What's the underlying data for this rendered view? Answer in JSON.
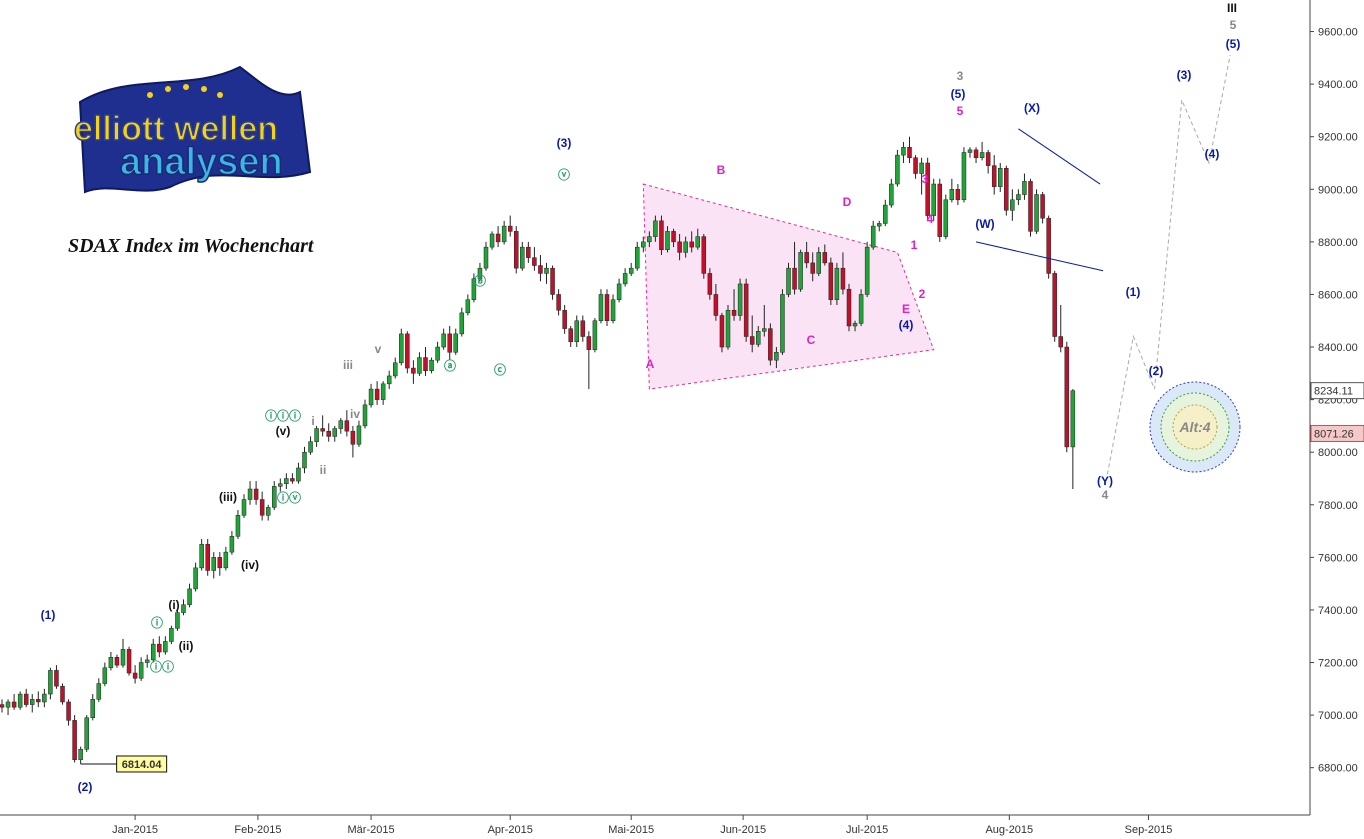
{
  "title": "SDAX Index im Wochenchart",
  "logo": {
    "line1": "elliott wellen",
    "line2": "analysen"
  },
  "colors": {
    "up": "#22a33a",
    "down": "#c0102a",
    "wave_blue": "#0a1aa8",
    "wave_magenta": "#e020c8",
    "wave_green": "#2aa06a",
    "wave_black": "#111111",
    "wave_grey": "#888888",
    "triangle_fill": "#f8d7ef",
    "triangle_line": "#e03090"
  },
  "alt_label": "Alt:4",
  "chart_data": {
    "type": "candlestick",
    "title": "SDAX Index im Wochenchart",
    "xlabel": "",
    "ylabel": "",
    "x_ticks": [
      "Jan-2015",
      "Feb-2015",
      "Mär-2015",
      "Apr-2015",
      "Mai-2015",
      "Jun-2015",
      "Jul-2015",
      "Aug-2015",
      "Sep-2015"
    ],
    "y_ticks": [
      "6800.00",
      "7000.00",
      "7200.00",
      "7400.00",
      "7600.00",
      "7800.00",
      "8000.00",
      "8200.00",
      "8400.00",
      "8600.00",
      "8800.00",
      "9000.00",
      "9200.00",
      "9400.00",
      "9600.00"
    ],
    "ylim": [
      6620,
      9720
    ],
    "price_labels": {
      "current": "8234.11",
      "secondary": "8071.26",
      "low_marker": "6814.04"
    },
    "candles": [
      [
        7040,
        7060,
        7010,
        7030
      ],
      [
        7030,
        7060,
        7000,
        7050
      ],
      [
        7050,
        7080,
        7020,
        7030
      ],
      [
        7030,
        7090,
        7020,
        7080
      ],
      [
        7080,
        7100,
        7030,
        7040
      ],
      [
        7040,
        7080,
        7010,
        7060
      ],
      [
        7060,
        7090,
        7030,
        7050
      ],
      [
        7050,
        7100,
        7030,
        7080
      ],
      [
        7080,
        7180,
        7060,
        7170
      ],
      [
        7170,
        7190,
        7100,
        7110
      ],
      [
        7110,
        7120,
        7040,
        7050
      ],
      [
        7050,
        7060,
        6960,
        6980
      ],
      [
        6980,
        7000,
        6820,
        6830
      ],
      [
        6830,
        6880,
        6814,
        6870
      ],
      [
        6870,
        7000,
        6860,
        6990
      ],
      [
        6990,
        7080,
        6980,
        7060
      ],
      [
        7060,
        7140,
        7050,
        7120
      ],
      [
        7120,
        7200,
        7110,
        7180
      ],
      [
        7180,
        7240,
        7170,
        7220
      ],
      [
        7220,
        7230,
        7180,
        7190
      ],
      [
        7190,
        7290,
        7180,
        7250
      ],
      [
        7250,
        7260,
        7150,
        7160
      ],
      [
        7160,
        7190,
        7120,
        7140
      ],
      [
        7140,
        7220,
        7130,
        7200
      ],
      [
        7200,
        7230,
        7180,
        7210
      ],
      [
        7210,
        7290,
        7200,
        7270
      ],
      [
        7270,
        7300,
        7220,
        7240
      ],
      [
        7240,
        7300,
        7230,
        7280
      ],
      [
        7280,
        7340,
        7270,
        7330
      ],
      [
        7330,
        7400,
        7320,
        7390
      ],
      [
        7390,
        7440,
        7380,
        7420
      ],
      [
        7420,
        7500,
        7410,
        7480
      ],
      [
        7480,
        7580,
        7470,
        7560
      ],
      [
        7560,
        7670,
        7550,
        7650
      ],
      [
        7650,
        7670,
        7530,
        7550
      ],
      [
        7550,
        7620,
        7520,
        7600
      ],
      [
        7600,
        7620,
        7530,
        7560
      ],
      [
        7560,
        7640,
        7550,
        7620
      ],
      [
        7620,
        7700,
        7610,
        7680
      ],
      [
        7680,
        7780,
        7670,
        7760
      ],
      [
        7760,
        7840,
        7750,
        7820
      ],
      [
        7820,
        7890,
        7800,
        7860
      ],
      [
        7860,
        7890,
        7800,
        7820
      ],
      [
        7820,
        7850,
        7740,
        7760
      ],
      [
        7760,
        7800,
        7740,
        7790
      ],
      [
        7790,
        7890,
        7780,
        7870
      ],
      [
        7870,
        7900,
        7850,
        7880
      ],
      [
        7880,
        7920,
        7860,
        7900
      ],
      [
        7900,
        7920,
        7880,
        7890
      ],
      [
        7890,
        7960,
        7880,
        7940
      ],
      [
        7940,
        8020,
        7920,
        8000
      ],
      [
        8000,
        8060,
        7990,
        8040
      ],
      [
        8040,
        8100,
        8020,
        8090
      ],
      [
        8090,
        8140,
        8060,
        8080
      ],
      [
        8080,
        8110,
        8040,
        8060
      ],
      [
        8060,
        8100,
        8040,
        8090
      ],
      [
        8090,
        8130,
        8070,
        8120
      ],
      [
        8120,
        8160,
        8060,
        8080
      ],
      [
        8080,
        8100,
        7980,
        8030
      ],
      [
        8030,
        8120,
        8020,
        8100
      ],
      [
        8100,
        8200,
        8090,
        8180
      ],
      [
        8180,
        8260,
        8170,
        8240
      ],
      [
        8240,
        8270,
        8180,
        8200
      ],
      [
        8200,
        8270,
        8180,
        8260
      ],
      [
        8260,
        8310,
        8240,
        8290
      ],
      [
        8290,
        8360,
        8280,
        8340
      ],
      [
        8340,
        8470,
        8330,
        8450
      ],
      [
        8450,
        8460,
        8300,
        8320
      ],
      [
        8320,
        8350,
        8260,
        8300
      ],
      [
        8300,
        8380,
        8290,
        8360
      ],
      [
        8360,
        8400,
        8290,
        8310
      ],
      [
        8310,
        8360,
        8300,
        8350
      ],
      [
        8350,
        8420,
        8340,
        8400
      ],
      [
        8400,
        8470,
        8390,
        8450
      ],
      [
        8450,
        8480,
        8350,
        8380
      ],
      [
        8380,
        8470,
        8370,
        8450
      ],
      [
        8450,
        8550,
        8440,
        8530
      ],
      [
        8530,
        8600,
        8520,
        8580
      ],
      [
        8580,
        8680,
        8570,
        8660
      ],
      [
        8660,
        8720,
        8650,
        8700
      ],
      [
        8700,
        8800,
        8690,
        8780
      ],
      [
        8780,
        8840,
        8770,
        8830
      ],
      [
        8830,
        8860,
        8780,
        8800
      ],
      [
        8800,
        8880,
        8790,
        8860
      ],
      [
        8860,
        8900,
        8820,
        8840
      ],
      [
        8840,
        8860,
        8680,
        8700
      ],
      [
        8700,
        8800,
        8690,
        8780
      ],
      [
        8780,
        8800,
        8720,
        8740
      ],
      [
        8740,
        8780,
        8690,
        8710
      ],
      [
        8710,
        8750,
        8650,
        8680
      ],
      [
        8680,
        8720,
        8640,
        8700
      ],
      [
        8700,
        8710,
        8580,
        8600
      ],
      [
        8600,
        8620,
        8520,
        8540
      ],
      [
        8540,
        8560,
        8450,
        8470
      ],
      [
        8470,
        8480,
        8400,
        8420
      ],
      [
        8420,
        8520,
        8400,
        8500
      ],
      [
        8500,
        8520,
        8420,
        8440
      ],
      [
        8440,
        8460,
        8240,
        8390
      ],
      [
        8390,
        8510,
        8380,
        8500
      ],
      [
        8500,
        8620,
        8490,
        8600
      ],
      [
        8600,
        8620,
        8480,
        8500
      ],
      [
        8500,
        8600,
        8490,
        8580
      ],
      [
        8580,
        8660,
        8570,
        8640
      ],
      [
        8640,
        8700,
        8630,
        8680
      ],
      [
        8680,
        8720,
        8670,
        8700
      ],
      [
        8700,
        8800,
        8690,
        8780
      ],
      [
        8780,
        8820,
        8760,
        8800
      ],
      [
        8800,
        8840,
        8780,
        8820
      ],
      [
        8820,
        8900,
        8800,
        8880
      ],
      [
        8880,
        8900,
        8750,
        8770
      ],
      [
        8770,
        8860,
        8760,
        8840
      ],
      [
        8840,
        8850,
        8780,
        8800
      ],
      [
        8800,
        8830,
        8730,
        8760
      ],
      [
        8760,
        8820,
        8740,
        8800
      ],
      [
        8800,
        8840,
        8760,
        8780
      ],
      [
        8780,
        8850,
        8770,
        8820
      ],
      [
        8820,
        8830,
        8660,
        8680
      ],
      [
        8680,
        8700,
        8580,
        8600
      ],
      [
        8600,
        8640,
        8500,
        8520
      ],
      [
        8520,
        8530,
        8380,
        8400
      ],
      [
        8400,
        8560,
        8390,
        8540
      ],
      [
        8540,
        8620,
        8500,
        8520
      ],
      [
        8520,
        8660,
        8500,
        8640
      ],
      [
        8640,
        8660,
        8420,
        8440
      ],
      [
        8440,
        8520,
        8380,
        8410
      ],
      [
        8410,
        8480,
        8400,
        8460
      ],
      [
        8460,
        8560,
        8440,
        8470
      ],
      [
        8470,
        8490,
        8330,
        8350
      ],
      [
        8350,
        8400,
        8320,
        8380
      ],
      [
        8380,
        8620,
        8370,
        8600
      ],
      [
        8600,
        8720,
        8590,
        8700
      ],
      [
        8700,
        8800,
        8600,
        8620
      ],
      [
        8620,
        8770,
        8610,
        8760
      ],
      [
        8760,
        8800,
        8700,
        8720
      ],
      [
        8720,
        8760,
        8650,
        8680
      ],
      [
        8680,
        8780,
        8670,
        8760
      ],
      [
        8760,
        8790,
        8710,
        8720
      ],
      [
        8720,
        8740,
        8560,
        8580
      ],
      [
        8580,
        8720,
        8560,
        8700
      ],
      [
        8700,
        8760,
        8600,
        8620
      ],
      [
        8620,
        8640,
        8460,
        8480
      ],
      [
        8480,
        8500,
        8460,
        8490
      ],
      [
        8490,
        8620,
        8480,
        8600
      ],
      [
        8600,
        8800,
        8590,
        8780
      ],
      [
        8780,
        8880,
        8770,
        8860
      ],
      [
        8860,
        8880,
        8840,
        8870
      ],
      [
        8870,
        8960,
        8860,
        8940
      ],
      [
        8940,
        9040,
        8930,
        9020
      ],
      [
        9020,
        9150,
        9010,
        9130
      ],
      [
        9130,
        9180,
        9100,
        9160
      ],
      [
        9160,
        9200,
        9100,
        9120
      ],
      [
        9120,
        9130,
        9040,
        9060
      ],
      [
        9060,
        9120,
        8980,
        9100
      ],
      [
        9100,
        9120,
        8880,
        8900
      ],
      [
        8900,
        9040,
        8880,
        9020
      ],
      [
        9020,
        9040,
        8800,
        8820
      ],
      [
        8820,
        8980,
        8810,
        8960
      ],
      [
        8960,
        9040,
        8950,
        9000
      ],
      [
        9000,
        9020,
        8940,
        8960
      ],
      [
        8960,
        9160,
        8950,
        9140
      ],
      [
        9140,
        9160,
        9120,
        9150
      ],
      [
        9150,
        9160,
        9100,
        9120
      ],
      [
        9120,
        9180,
        9110,
        9140
      ],
      [
        9140,
        9150,
        9060,
        9090
      ],
      [
        9090,
        9130,
        8980,
        9010
      ],
      [
        9010,
        9100,
        8990,
        9080
      ],
      [
        9080,
        9090,
        8900,
        8920
      ],
      [
        8920,
        9000,
        8880,
        8960
      ],
      [
        8960,
        9000,
        8940,
        8980
      ],
      [
        8980,
        9060,
        8960,
        9030
      ],
      [
        9030,
        9040,
        8820,
        8840
      ],
      [
        8840,
        9000,
        8830,
        8980
      ],
      [
        8980,
        8990,
        8870,
        8890
      ],
      [
        8890,
        8900,
        8660,
        8680
      ],
      [
        8680,
        8690,
        8420,
        8440
      ],
      [
        8440,
        8560,
        8380,
        8400
      ],
      [
        8400,
        8420,
        8000,
        8020
      ],
      [
        8020,
        8240,
        7860,
        8234
      ]
    ]
  },
  "wave_labels": [
    {
      "t": "(1)",
      "c": "blue"
    },
    {
      "t": "(2)",
      "c": "blue"
    },
    {
      "t": "(3)",
      "c": "blue"
    },
    {
      "t": "(4)",
      "c": "blue"
    },
    {
      "t": "(5)",
      "c": "blue"
    },
    {
      "t": "(W)",
      "c": "blue"
    },
    {
      "t": "(X)",
      "c": "blue"
    },
    {
      "t": "(Y)",
      "c": "blue"
    },
    {
      "t": "(1)",
      "c": "blue"
    },
    {
      "t": "(2)",
      "c": "blue"
    },
    {
      "t": "(3)",
      "c": "blue"
    },
    {
      "t": "(4)",
      "c": "blue"
    },
    {
      "t": "(5)",
      "c": "blue"
    },
    {
      "t": "1",
      "c": "magenta"
    },
    {
      "t": "2",
      "c": "magenta"
    },
    {
      "t": "3",
      "c": "magenta"
    },
    {
      "t": "4",
      "c": "magenta"
    },
    {
      "t": "5",
      "c": "magenta"
    },
    {
      "t": "A",
      "c": "magenta"
    },
    {
      "t": "B",
      "c": "magenta"
    },
    {
      "t": "C",
      "c": "magenta"
    },
    {
      "t": "D",
      "c": "magenta"
    },
    {
      "t": "E",
      "c": "magenta"
    },
    {
      "t": "(i)",
      "c": "black"
    },
    {
      "t": "(ii)",
      "c": "black"
    },
    {
      "t": "(iii)",
      "c": "black"
    },
    {
      "t": "(iv)",
      "c": "black"
    },
    {
      "t": "(v)",
      "c": "black"
    },
    {
      "t": "i",
      "c": "grey"
    },
    {
      "t": "ii",
      "c": "grey"
    },
    {
      "t": "iii",
      "c": "grey"
    },
    {
      "t": "iv",
      "c": "grey"
    },
    {
      "t": "v",
      "c": "grey"
    },
    {
      "t": "ⓘ",
      "c": "green"
    },
    {
      "t": "ⓘⓘ",
      "c": "green"
    },
    {
      "t": "ⓘⓘⓘ",
      "c": "green"
    },
    {
      "t": "ⓘⓥ",
      "c": "green"
    },
    {
      "t": "ⓥ",
      "c": "green"
    },
    {
      "t": "ⓐ",
      "c": "green"
    },
    {
      "t": "ⓑ",
      "c": "green"
    },
    {
      "t": "ⓒ",
      "c": "green"
    },
    {
      "t": "3",
      "c": "grey"
    },
    {
      "t": "4",
      "c": "grey"
    },
    {
      "t": "5",
      "c": "grey"
    },
    {
      "t": "III",
      "c": "black"
    }
  ]
}
